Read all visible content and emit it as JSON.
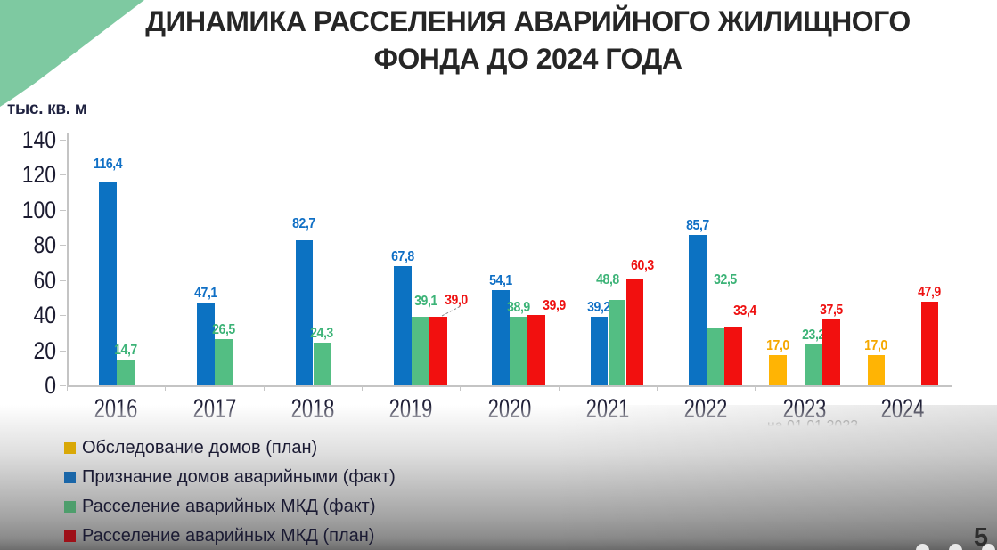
{
  "page": {
    "number": "5"
  },
  "decor": {
    "corner_triangle_color": "#7EC9A1"
  },
  "chart_data": {
    "type": "bar",
    "title": "ДИНАМИКА РАССЕЛЕНИЯ АВАРИЙНОГО ЖИЛИЩНОГО ФОНДА ДО 2024 ГОДА",
    "unit_label": "тыс. кв. м",
    "categories": [
      "2016",
      "2017",
      "2018",
      "2019",
      "2020",
      "2021",
      "2022",
      "2023",
      "2024"
    ],
    "ylim": [
      0,
      140
    ],
    "ytick_step": 20,
    "grid": false,
    "legend_position": "bottom-left",
    "decimal_separator": ",",
    "annotation": {
      "text": "на 01.01.2023",
      "under_category": "2023"
    },
    "series": [
      {
        "name": "Обследование домов (план)",
        "bar_color": "#FFB404",
        "legend_color": "#D9A806",
        "label_color": "#F5A800",
        "values": [
          null,
          null,
          null,
          null,
          null,
          null,
          null,
          17.0,
          17.0
        ]
      },
      {
        "name": "Признание домов аварийными (факт)",
        "bar_color": "#0C72C2",
        "legend_color": "#1A66A8",
        "label_color": "#0F6FC5",
        "values": [
          116.4,
          47.1,
          82.7,
          67.8,
          54.1,
          39.2,
          85.7,
          null,
          null
        ]
      },
      {
        "name": "Расселение аварийных МКД (факт)",
        "bar_color": "#53BE83",
        "legend_color": "#4E9E6C",
        "label_color": "#3CB377",
        "values": [
          14.7,
          26.5,
          24.3,
          39.1,
          38.9,
          48.8,
          32.5,
          23.2,
          null
        ]
      },
      {
        "name": "Расселение аварийных МКД (план)",
        "bar_color": "#F2100F",
        "legend_color": "#9E1018",
        "label_color": "#EE1111",
        "values": [
          null,
          null,
          null,
          39.0,
          39.9,
          60.3,
          33.4,
          37.5,
          47.9
        ]
      }
    ],
    "label_offsets": {
      "1-2016": {
        "dy": -9
      },
      "1-2018": {
        "dy": -8
      },
      "2-2019": {
        "dx": 6,
        "dy": -7
      },
      "3-2019": {
        "dx": 20,
        "dy": -8,
        "leader": true
      },
      "3-2020": {
        "dx": 20,
        "dy": 0
      },
      "2-2021": {
        "dx": -10,
        "dy": -12
      },
      "3-2021": {
        "dx": 9,
        "dy": -5
      },
      "2-2022": {
        "dx": 11,
        "dy": -44
      },
      "3-2022": {
        "dx": 13,
        "dy": -7
      }
    }
  }
}
